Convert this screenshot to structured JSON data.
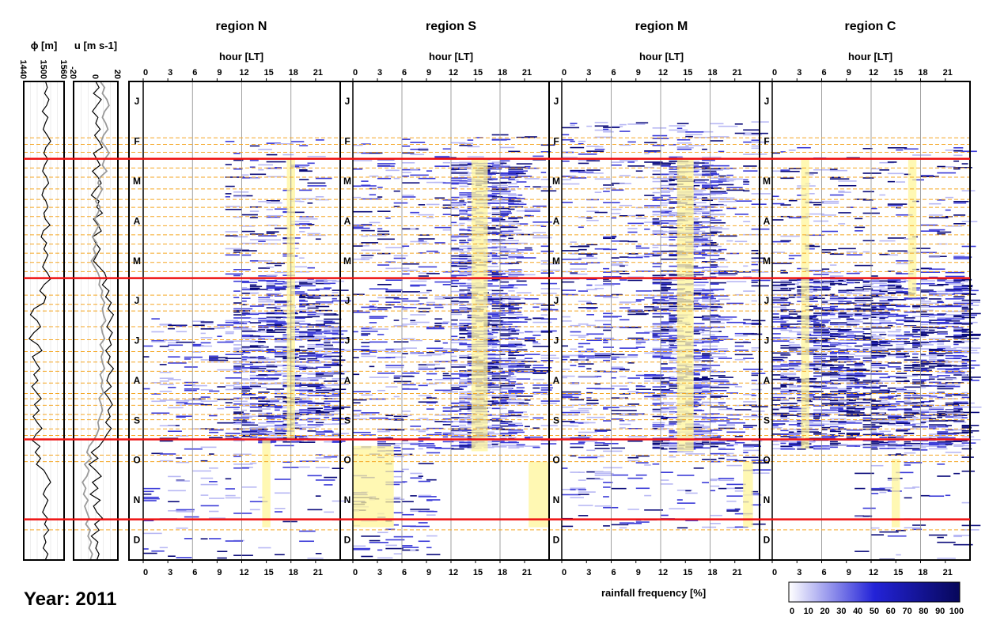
{
  "year_label": "Year: 2011",
  "colors": {
    "season_line": "#ee1111",
    "weekly_line": "#f5a623",
    "highlight": "#fff59a",
    "rain_light": "#b8b8f4",
    "rain_mid": "#3b3bd8",
    "rain_dark": "#0a0a7a",
    "phi_line": "#000000",
    "u_line_1": "#000000",
    "u_line_2": "#9a9a9a"
  },
  "colorbar": {
    "label": "rainfall frequency [%]",
    "ticks": [
      "0",
      "10",
      "20",
      "30",
      "40",
      "50",
      "60",
      "70",
      "80",
      "90",
      "100"
    ]
  },
  "chart_data": [
    {
      "type": "line",
      "title": "",
      "xlabel": "ϕ [m]",
      "xlim": [
        1440,
        1560
      ],
      "xticks": [
        "1440",
        "1500",
        "1560"
      ],
      "ylabel": "",
      "series": [
        {
          "values": [
            1505,
            1510,
            1502,
            1515,
            1508,
            1495,
            1512,
            1504,
            1498,
            1510,
            1520,
            1506,
            1500,
            1512,
            1502,
            1496,
            1508,
            1514,
            1500,
            1494,
            1506,
            1512,
            1500,
            1504,
            1518,
            1498,
            1492,
            1508,
            1500,
            1512,
            1504,
            1496,
            1510,
            1520,
            1500,
            1488,
            1506,
            1500,
            1470,
            1460,
            1480,
            1490,
            1470,
            1456,
            1482,
            1494,
            1466,
            1476,
            1488,
            1470,
            1482,
            1464,
            1478,
            1492,
            1472,
            1486,
            1468,
            1480,
            1494,
            1476,
            1466,
            1488,
            1474,
            1490,
            1478,
            1500,
            1510,
            1520,
            1506,
            1498,
            1512,
            1504,
            1496,
            1510,
            1502,
            1514,
            1500,
            1506,
            1498,
            1512,
            1504
          ]
        }
      ]
    },
    {
      "type": "line",
      "title": "",
      "xlabel": "u [m s-1]",
      "xlim": [
        -20,
        20
      ],
      "xticks": [
        "-20",
        "0",
        "20"
      ],
      "ylabel": "",
      "series": [
        {
          "values": [
            0,
            3,
            -2,
            5,
            1,
            -3,
            2,
            0,
            4,
            -1,
            3,
            6,
            -2,
            1,
            4,
            -3,
            2,
            5,
            0,
            -4,
            3,
            1,
            6,
            -2,
            2,
            5,
            -3,
            0,
            4,
            1,
            -2,
            3,
            8,
            10,
            6,
            12,
            9,
            14,
            11,
            16,
            13,
            10,
            15,
            12,
            14,
            9,
            13,
            11,
            16,
            12,
            10,
            14,
            8,
            12,
            15,
            11,
            13,
            9,
            14,
            10,
            7,
            3,
            -4,
            2,
            -6,
            0,
            5,
            -3,
            2,
            -5,
            4,
            -2,
            1,
            6,
            -1,
            3,
            -4,
            2,
            0,
            3,
            1
          ]
        },
        {
          "values": [
            4,
            8,
            6,
            10,
            12,
            8,
            6,
            9,
            11,
            7,
            5,
            9,
            12,
            8,
            6,
            10,
            4,
            2,
            6,
            3,
            0,
            4,
            2,
            -1,
            3,
            0,
            -3,
            1,
            -2,
            0,
            -4,
            -1,
            2,
            4,
            3,
            6,
            5,
            8,
            6,
            7,
            9,
            5,
            6,
            8,
            4,
            7,
            5,
            6,
            8,
            4,
            6,
            5,
            7,
            3,
            5,
            6,
            4,
            2,
            3,
            1,
            -2,
            -6,
            -8,
            -4,
            -10,
            -6,
            -8,
            -12,
            -9,
            -11,
            -7,
            -10,
            -8,
            -6,
            -9,
            -5,
            -7,
            -4,
            -6,
            -3,
            -5
          ]
        }
      ]
    },
    {
      "type": "heatmap",
      "title": "region N",
      "xlabel": "hour [LT]",
      "xticks": [
        "0",
        "3",
        "6",
        "9",
        "12",
        "15",
        "18",
        "21"
      ],
      "months": [
        "J",
        "F",
        "M",
        "A",
        "M",
        "J",
        "J",
        "A",
        "S",
        "O",
        "N",
        "D"
      ],
      "highlights": [
        {
          "hour_start": 17.5,
          "hour_end": 18.5,
          "day_start": 59,
          "day_end": 273
        },
        {
          "hour_start": 14.5,
          "hour_end": 15.5,
          "day_start": 273,
          "day_end": 340
        }
      ],
      "activity": [
        {
          "day_start": 40,
          "day_end": 150,
          "hour_start": 10,
          "hour_end": 22,
          "level": 0.1
        },
        {
          "day_start": 150,
          "day_end": 275,
          "hour_start": 11,
          "hour_end": 24,
          "level": 0.35
        },
        {
          "day_start": 180,
          "day_end": 275,
          "hour_start": 0,
          "hour_end": 24,
          "level": 0.12
        },
        {
          "day_start": 275,
          "day_end": 365,
          "hour_start": 0,
          "hour_end": 24,
          "level": 0.04
        }
      ]
    },
    {
      "type": "heatmap",
      "title": "region S",
      "xlabel": "hour [LT]",
      "xticks": [
        "0",
        "3",
        "6",
        "9",
        "12",
        "15",
        "18",
        "21"
      ],
      "months": [
        "J",
        "F",
        "M",
        "A",
        "M",
        "J",
        "J",
        "A",
        "S",
        "O",
        "N",
        "D"
      ],
      "highlights": [
        {
          "hour_start": 14.5,
          "hour_end": 16.5,
          "day_start": 59,
          "day_end": 282
        },
        {
          "hour_start": 0,
          "hour_end": 5,
          "day_start": 278,
          "day_end": 340
        },
        {
          "hour_start": 21.5,
          "hour_end": 24,
          "day_start": 290,
          "day_end": 340
        }
      ],
      "activity": [
        {
          "day_start": 40,
          "day_end": 150,
          "hour_start": 0,
          "hour_end": 24,
          "level": 0.1
        },
        {
          "day_start": 60,
          "day_end": 280,
          "hour_start": 12,
          "hour_end": 20,
          "level": 0.4
        },
        {
          "day_start": 150,
          "day_end": 280,
          "hour_start": 0,
          "hour_end": 24,
          "level": 0.15
        },
        {
          "day_start": 275,
          "day_end": 365,
          "hour_start": 0,
          "hour_end": 10,
          "level": 0.12
        }
      ]
    },
    {
      "type": "heatmap",
      "title": "region M",
      "xlabel": "hour [LT]",
      "xticks": [
        "0",
        "3",
        "6",
        "9",
        "12",
        "15",
        "18",
        "21"
      ],
      "months": [
        "J",
        "F",
        "M",
        "A",
        "M",
        "J",
        "J",
        "A",
        "S",
        "O",
        "N",
        "D"
      ],
      "highlights": [
        {
          "hour_start": 14,
          "hour_end": 16,
          "day_start": 59,
          "day_end": 282
        },
        {
          "hour_start": 22,
          "hour_end": 23.2,
          "day_start": 290,
          "day_end": 340
        }
      ],
      "activity": [
        {
          "day_start": 30,
          "day_end": 150,
          "hour_start": 0,
          "hour_end": 24,
          "level": 0.12
        },
        {
          "day_start": 60,
          "day_end": 280,
          "hour_start": 11,
          "hour_end": 19,
          "level": 0.35
        },
        {
          "day_start": 150,
          "day_end": 280,
          "hour_start": 0,
          "hour_end": 24,
          "level": 0.15
        },
        {
          "day_start": 275,
          "day_end": 340,
          "hour_start": 0,
          "hour_end": 24,
          "level": 0.1
        }
      ]
    },
    {
      "type": "heatmap",
      "title": "region C",
      "xlabel": "hour [LT]",
      "xticks": [
        "0",
        "3",
        "6",
        "9",
        "12",
        "15",
        "18",
        "21"
      ],
      "months": [
        "J",
        "F",
        "M",
        "A",
        "M",
        "J",
        "J",
        "A",
        "S",
        "O",
        "N",
        "D"
      ],
      "highlights": [
        {
          "hour_start": 3.5,
          "hour_end": 4.5,
          "day_start": 59,
          "day_end": 280
        },
        {
          "hour_start": 16.5,
          "hour_end": 17.5,
          "day_start": 59,
          "day_end": 165
        },
        {
          "hour_start": 14.5,
          "hour_end": 15.5,
          "day_start": 288,
          "day_end": 340
        }
      ],
      "activity": [
        {
          "day_start": 50,
          "day_end": 150,
          "hour_start": 0,
          "hour_end": 24,
          "level": 0.08
        },
        {
          "day_start": 150,
          "day_end": 280,
          "hour_start": 0,
          "hour_end": 24,
          "level": 0.45
        },
        {
          "day_start": 280,
          "day_end": 365,
          "hour_start": 10,
          "hour_end": 24,
          "level": 0.05
        }
      ]
    }
  ],
  "season_boundaries_day": [
    59,
    150,
    273,
    334
  ],
  "weekly_marker_days": [
    43,
    48,
    54,
    66,
    73,
    82,
    90,
    96,
    103,
    110,
    117,
    124,
    131,
    138,
    145,
    163,
    170,
    175,
    187,
    197,
    206,
    214,
    221,
    230,
    238,
    242,
    247,
    254,
    258,
    265,
    270,
    285,
    290,
    342
  ]
}
